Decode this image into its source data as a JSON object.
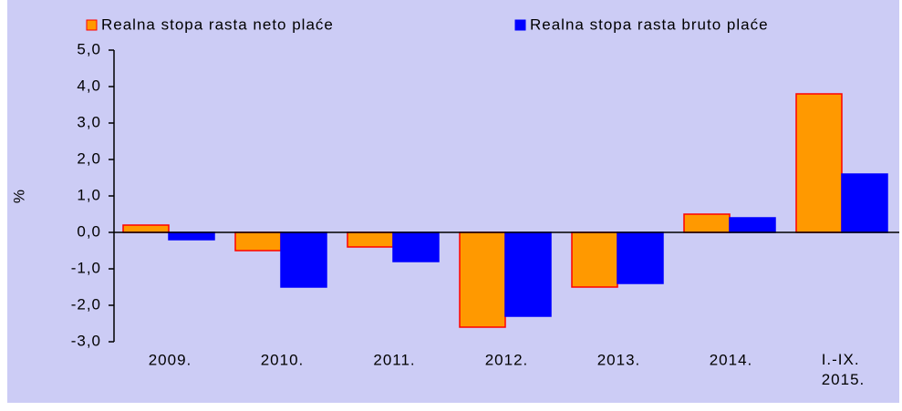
{
  "chart_data": {
    "type": "bar",
    "y_label": "%",
    "categories": [
      "2009.",
      "2010.",
      "2011.",
      "2012.",
      "2013.",
      "2014.",
      "I.-IX. 2015."
    ],
    "series": [
      {
        "name": "Realna stopa rasta neto plaće",
        "color": "#ff9900",
        "values": [
          0.2,
          -0.5,
          -0.4,
          -2.6,
          -1.5,
          0.5,
          3.8
        ]
      },
      {
        "name": "Realna stopa rasta bruto plaće",
        "color": "#0000ff",
        "values": [
          -0.2,
          -1.5,
          -0.8,
          -2.3,
          -1.4,
          0.4,
          1.6
        ]
      }
    ],
    "ylim": [
      -3,
      5
    ],
    "yticks": [
      {
        "value": 5,
        "label": "5,0"
      },
      {
        "value": 4,
        "label": "4,0"
      },
      {
        "value": 3,
        "label": "3,0"
      },
      {
        "value": 2,
        "label": "2,0"
      },
      {
        "value": 1,
        "label": "1,0"
      },
      {
        "value": 0,
        "label": "0,0"
      },
      {
        "value": -1,
        "label": "-1,0"
      },
      {
        "value": -2,
        "label": "-2,0"
      },
      {
        "value": -3,
        "label": "-3,0"
      }
    ],
    "grid": false
  }
}
